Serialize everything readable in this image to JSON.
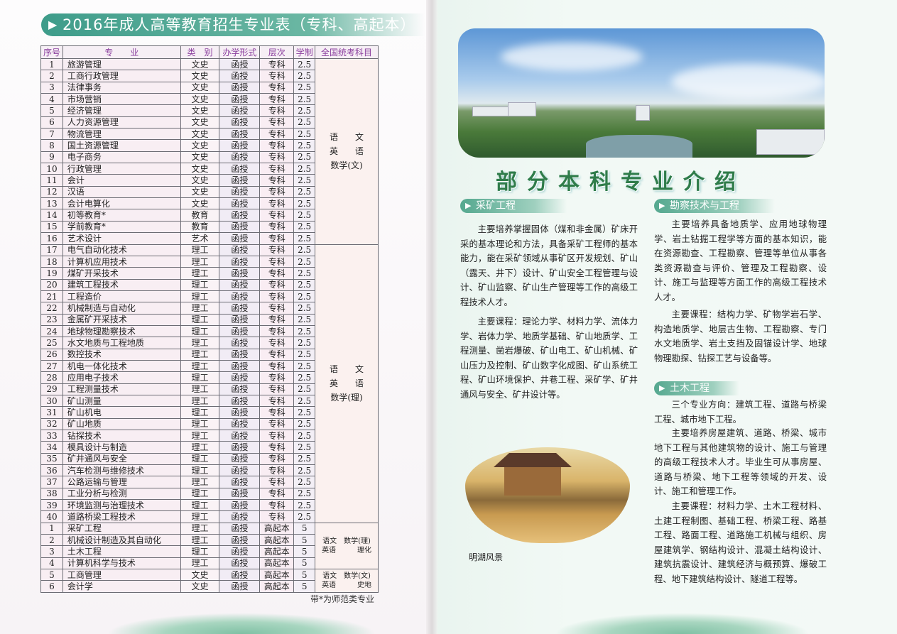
{
  "left_page": {
    "title": "2016年成人高等教育招生专业表（专科、高起本）",
    "table": {
      "headers": [
        "序号",
        "专　　业",
        "类　别",
        "办学形式",
        "层次",
        "学制",
        "全国统考科目"
      ],
      "groups": [
        {
          "subjects": [
            "语　　文",
            "英　　语",
            "数学(文)"
          ],
          "rows": [
            [
              "1",
              "旅游管理",
              "文史",
              "函授",
              "专科",
              "2.5"
            ],
            [
              "2",
              "工商行政管理",
              "文史",
              "函授",
              "专科",
              "2.5"
            ],
            [
              "3",
              "法律事务",
              "文史",
              "函授",
              "专科",
              "2.5"
            ],
            [
              "4",
              "市场营销",
              "文史",
              "函授",
              "专科",
              "2.5"
            ],
            [
              "5",
              "经济管理",
              "文史",
              "函授",
              "专科",
              "2.5"
            ],
            [
              "6",
              "人力资源管理",
              "文史",
              "函授",
              "专科",
              "2.5"
            ],
            [
              "7",
              "物流管理",
              "文史",
              "函授",
              "专科",
              "2.5"
            ],
            [
              "8",
              "国土资源管理",
              "文史",
              "函授",
              "专科",
              "2.5"
            ],
            [
              "9",
              "电子商务",
              "文史",
              "函授",
              "专科",
              "2.5"
            ],
            [
              "10",
              "行政管理",
              "文史",
              "函授",
              "专科",
              "2.5"
            ],
            [
              "11",
              "会计",
              "文史",
              "函授",
              "专科",
              "2.5"
            ],
            [
              "12",
              "汉语",
              "文史",
              "函授",
              "专科",
              "2.5"
            ],
            [
              "13",
              "会计电算化",
              "文史",
              "函授",
              "专科",
              "2.5"
            ],
            [
              "14",
              "初等教育*",
              "教育",
              "函授",
              "专科",
              "2.5"
            ],
            [
              "15",
              "学前教育*",
              "教育",
              "函授",
              "专科",
              "2.5"
            ],
            [
              "16",
              "艺术设计",
              "艺术",
              "函授",
              "专科",
              "2.5"
            ]
          ]
        },
        {
          "subjects": [
            "语　　文",
            "英　　语",
            "数学(理)"
          ],
          "rows": [
            [
              "17",
              "电气自动化技术",
              "理工",
              "函授",
              "专科",
              "2.5"
            ],
            [
              "18",
              "计算机应用技术",
              "理工",
              "函授",
              "专科",
              "2.5"
            ],
            [
              "19",
              "煤矿开采技术",
              "理工",
              "函授",
              "专科",
              "2.5"
            ],
            [
              "20",
              "建筑工程技术",
              "理工",
              "函授",
              "专科",
              "2.5"
            ],
            [
              "21",
              "工程造价",
              "理工",
              "函授",
              "专科",
              "2.5"
            ],
            [
              "22",
              "机械制造与自动化",
              "理工",
              "函授",
              "专科",
              "2.5"
            ],
            [
              "23",
              "金属矿开采技术",
              "理工",
              "函授",
              "专科",
              "2.5"
            ],
            [
              "24",
              "地球物理勘察技术",
              "理工",
              "函授",
              "专科",
              "2.5"
            ],
            [
              "25",
              "水文地质与工程地质",
              "理工",
              "函授",
              "专科",
              "2.5"
            ],
            [
              "26",
              "数控技术",
              "理工",
              "函授",
              "专科",
              "2.5"
            ],
            [
              "27",
              "机电一体化技术",
              "理工",
              "函授",
              "专科",
              "2.5"
            ],
            [
              "28",
              "应用电子技术",
              "理工",
              "函授",
              "专科",
              "2.5"
            ],
            [
              "29",
              "工程测量技术",
              "理工",
              "函授",
              "专科",
              "2.5"
            ],
            [
              "30",
              "矿山测量",
              "理工",
              "函授",
              "专科",
              "2.5"
            ],
            [
              "31",
              "矿山机电",
              "理工",
              "函授",
              "专科",
              "2.5"
            ],
            [
              "32",
              "矿山地质",
              "理工",
              "函授",
              "专科",
              "2.5"
            ],
            [
              "33",
              "钻探技术",
              "理工",
              "函授",
              "专科",
              "2.5"
            ],
            [
              "34",
              "模具设计与制造",
              "理工",
              "函授",
              "专科",
              "2.5"
            ],
            [
              "35",
              "矿井通风与安全",
              "理工",
              "函授",
              "专科",
              "2.5"
            ],
            [
              "36",
              "汽车检测与维修技术",
              "理工",
              "函授",
              "专科",
              "2.5"
            ],
            [
              "37",
              "公路运输与管理",
              "理工",
              "函授",
              "专科",
              "2.5"
            ],
            [
              "38",
              "工业分析与检测",
              "理工",
              "函授",
              "专科",
              "2.5"
            ],
            [
              "39",
              "环境监测与治理技术",
              "理工",
              "函授",
              "专科",
              "2.5"
            ],
            [
              "40",
              "道路桥梁工程技术",
              "理工",
              "函授",
              "专科",
              "2.5"
            ]
          ]
        },
        {
          "subjects": [
            "语文　数学(理)",
            "英语　　　理化"
          ],
          "small": true,
          "rows": [
            [
              "1",
              "采矿工程",
              "理工",
              "函授",
              "高起本",
              "5"
            ],
            [
              "2",
              "机械设计制造及其自动化",
              "理工",
              "函授",
              "高起本",
              "5"
            ],
            [
              "3",
              "土木工程",
              "理工",
              "函授",
              "高起本",
              "5"
            ],
            [
              "4",
              "计算机科学与技术",
              "理工",
              "函授",
              "高起本",
              "5"
            ]
          ]
        },
        {
          "subjects": [
            "语文　数学(文)",
            "英语　　　史地"
          ],
          "small": true,
          "rows": [
            [
              "5",
              "工商管理",
              "文史",
              "函授",
              "高起本",
              "5"
            ],
            [
              "6",
              "会计学",
              "文史",
              "函授",
              "高起本",
              "5"
            ]
          ]
        }
      ]
    },
    "note": "带*为师范类专业"
  },
  "right_page": {
    "title": "部分本科专业介绍",
    "sections": [
      {
        "heading": "采矿工程",
        "paragraphs": [
          "主要培养掌握固体（煤和非金属）矿床开采的基本理论和方法，具备采矿工程师的基本能力，能在采矿领域从事矿区开发规划、矿山（露天、井下）设计、矿山安全工程管理与设计、矿山监察、矿山生产管理等工作的高级工程技术人才。",
          "主要课程：理论力学、材料力学、流体力学、岩体力学、地质学基础、矿山地质学、工程测量、凿岩爆破、矿山电工、矿山机械、矿山压力及控制、矿山数字化成图、矿山系统工程、矿山环境保护、井巷工程、采矿学、矿井通风与安全、矿井设计等。"
        ]
      },
      {
        "heading": "勘察技术与工程",
        "paragraphs": [
          "主要培养具备地质学、应用地球物理学、岩土钻掘工程学等方面的基本知识，能在资源勘查、工程勘察、管理等单位从事各类资源勘查与评价、管理及工程勘察、设计、施工与监理等方面工作的高级工程技术人才。",
          "主要课程：结构力学、矿物学岩石学、构造地质学、地层古生物、工程勘察、专门水文地质学、岩土支挡及固锚设计学、地球物理勘探、钻探工艺与设备等。"
        ]
      },
      {
        "heading": "土木工程",
        "paragraphs": [
          "三个专业方向：建筑工程、道路与桥梁工程、城市地下工程。",
          "主要培养房屋建筑、道路、桥梁、城市地下工程与其他建筑物的设计、施工与管理的高级工程技术人才。毕业生可从事房屋、道路与桥梁、地下工程等领域的开发、设计、施工和管理工作。",
          "主要课程：材料力学、土木工程材料、土建工程制图、基础工程、桥梁工程、路基工程、路面工程、道路施工机械与组织、房屋建筑学、钢结构设计、混凝土结构设计、建筑抗震设计、建筑经济与概预算、爆破工程、地下建筑结构设计、隧道工程等。"
        ]
      }
    ],
    "photo_caption": "明湖风景"
  },
  "colors": {
    "accent_green": "#3e9c8a",
    "header_purple": "#8b3f9e",
    "title_green": "#2f7c4a"
  }
}
